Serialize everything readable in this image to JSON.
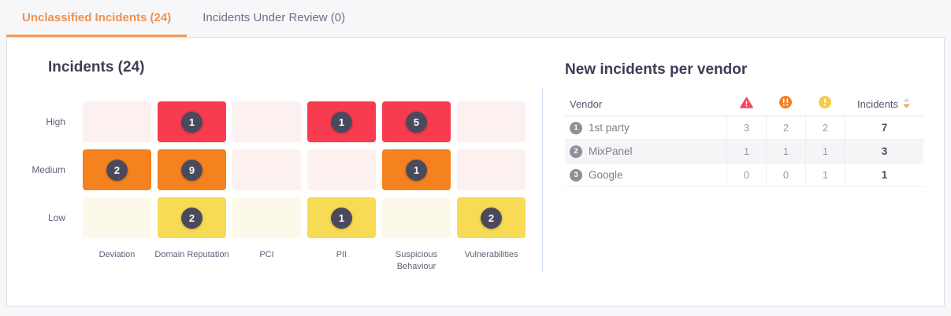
{
  "tabs": [
    {
      "label": "Unclassified Incidents (24)",
      "active": true
    },
    {
      "label": "Incidents Under Review (0)",
      "active": false
    }
  ],
  "accent_colors": {
    "active_tab_orange": "#f0914c",
    "divider_blue": "#cfd9f1",
    "badge_dark": "#4b4a5d"
  },
  "chart_data": {
    "type": "heatmap",
    "title": "Incidents (24)",
    "y_categories": [
      "High",
      "Medium",
      "Low"
    ],
    "x_categories": [
      "Deviation",
      "Domain Reputation",
      "PCI",
      "PII",
      "Suspicious Behaviour",
      "Vulnerabilities"
    ],
    "values": [
      [
        null,
        1,
        null,
        1,
        5,
        null
      ],
      [
        2,
        9,
        null,
        null,
        1,
        null
      ],
      [
        null,
        2,
        null,
        1,
        null,
        2
      ]
    ],
    "row_colors": [
      "#f83b4e",
      "#f5821f",
      "#f8db54"
    ],
    "empty_colors": [
      "#fdf0f0",
      "#fdf1ef",
      "#fcf9eb"
    ],
    "legend": "none",
    "grid": false
  },
  "vendor_table": {
    "title": "New incidents per vendor",
    "columns": {
      "vendor": "Vendor",
      "severity_icons": [
        "critical-triangle-exclamation",
        "high-double-exclamation-circle",
        "medium-exclamation-circle"
      ],
      "incidents": "Incidents"
    },
    "sort": {
      "column": "Incidents",
      "direction": "desc"
    },
    "icon_colors": {
      "critical": "#f8475c",
      "high": "#f5821f",
      "medium": "#f6cc4b"
    },
    "rows": [
      {
        "rank": "1",
        "vendor": "1st party",
        "critical": "3",
        "high": "2",
        "medium": "2",
        "incidents": "7"
      },
      {
        "rank": "2",
        "vendor": "MixPanel",
        "critical": "1",
        "high": "1",
        "medium": "1",
        "incidents": "3"
      },
      {
        "rank": "3",
        "vendor": "Google",
        "critical": "0",
        "high": "0",
        "medium": "1",
        "incidents": "1"
      }
    ]
  }
}
